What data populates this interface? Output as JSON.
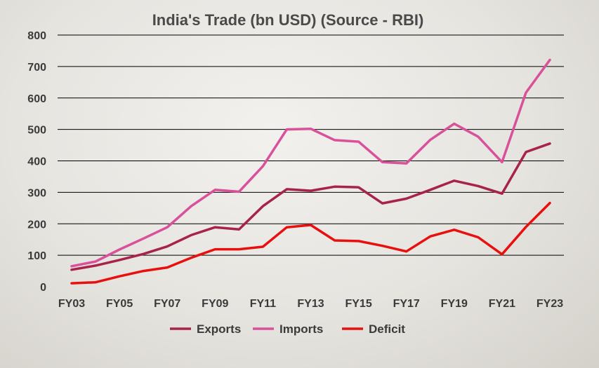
{
  "chart_data": {
    "type": "line",
    "title": "India's Trade (bn USD) (Source - RBI)",
    "xlabel": "",
    "ylabel": "",
    "ylim": [
      0,
      800
    ],
    "yticks": [
      0,
      100,
      200,
      300,
      400,
      500,
      600,
      700,
      800
    ],
    "grid": true,
    "legend_position": "bottom",
    "categories": [
      "FY03",
      "FY04",
      "FY05",
      "FY06",
      "FY07",
      "FY08",
      "FY09",
      "FY10",
      "FY11",
      "FY12",
      "FY13",
      "FY14",
      "FY15",
      "FY16",
      "FY17",
      "FY18",
      "FY19",
      "FY20",
      "FY21",
      "FY22",
      "FY23"
    ],
    "xtick_labels": [
      "FY03",
      "FY05",
      "FY07",
      "FY09",
      "FY11",
      "FY13",
      "FY15",
      "FY17",
      "FY19",
      "FY21",
      "FY23"
    ],
    "series": [
      {
        "name": "Exports",
        "color": "#a8234a",
        "values": [
          54,
          67,
          85,
          104,
          128,
          164,
          189,
          182,
          256,
          310,
          305,
          318,
          316,
          265,
          280,
          308,
          337,
          320,
          296,
          428,
          455
        ]
      },
      {
        "name": "Imports",
        "color": "#d9519a",
        "values": [
          65,
          80,
          118,
          153,
          189,
          256,
          308,
          302,
          383,
          500,
          502,
          466,
          461,
          396,
          392,
          467,
          518,
          477,
          396,
          617,
          721
        ]
      },
      {
        "name": "Deficit",
        "color": "#e8100e",
        "values": [
          11,
          14,
          33,
          50,
          61,
          92,
          119,
          119,
          127,
          189,
          196,
          147,
          145,
          130,
          112,
          160,
          181,
          157,
          103,
          190,
          266
        ]
      }
    ]
  }
}
